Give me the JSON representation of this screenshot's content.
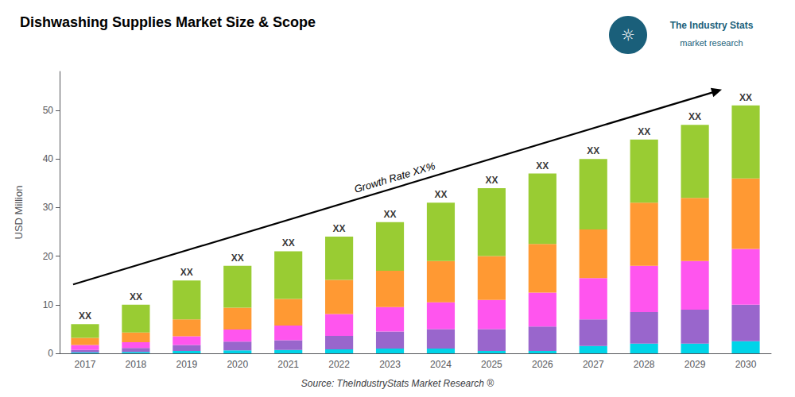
{
  "chart_data": {
    "type": "bar",
    "title": "Dishwashing Supplies Market Size & Scope",
    "ylabel": "USD Million",
    "categories": [
      2017,
      2018,
      2019,
      2020,
      2021,
      2022,
      2023,
      2024,
      2025,
      2026,
      2027,
      2028,
      2029,
      2030
    ],
    "stacked": true,
    "series": [
      {
        "color": "#00D4E8",
        "values": [
          0.2,
          0.3,
          0.5,
          0.6,
          0.7,
          0.8,
          1.0,
          1.0,
          0.5,
          0.5,
          1.5,
          2.0,
          2.0,
          2.5
        ]
      },
      {
        "color": "#9966CC",
        "values": [
          0.5,
          0.8,
          1.2,
          1.8,
          2.0,
          2.8,
          3.5,
          4.0,
          4.5,
          5.0,
          5.5,
          6.5,
          7.0,
          7.5
        ]
      },
      {
        "color": "#FF55EE",
        "values": [
          1.0,
          1.2,
          1.8,
          2.5,
          3.0,
          4.5,
          5.0,
          5.5,
          6.0,
          7.0,
          8.5,
          9.5,
          10.0,
          11.5
        ]
      },
      {
        "color": "#FF9933",
        "values": [
          1.5,
          2.0,
          3.5,
          4.5,
          5.5,
          7.0,
          7.5,
          8.5,
          9.0,
          10.0,
          10.0,
          13.0,
          13.0,
          14.5
        ]
      },
      {
        "color": "#99CC33",
        "values": [
          2.8,
          5.7,
          8.0,
          8.6,
          9.8,
          8.9,
          10.0,
          12.0,
          14.0,
          14.5,
          14.5,
          13.0,
          15.0,
          15.0
        ]
      }
    ],
    "totals": [
      6,
      10,
      15,
      18,
      21,
      24,
      27,
      31,
      34,
      37,
      40,
      44,
      47,
      51
    ],
    "total_labels": [
      "XX",
      "XX",
      "XX",
      "XX",
      "XX",
      "XX",
      "XX",
      "XX",
      "XX",
      "XX",
      "XX",
      "XX",
      "XX",
      "XX"
    ],
    "annotations": [
      "Growth Rate XX%"
    ],
    "source": "Source: TheIndustryStats Market Research ®",
    "logo": {
      "text": [
        "The Industry Stats",
        "market research"
      ],
      "icon": "☼",
      "color": "#1a5f7a"
    },
    "ylim": [
      0,
      58
    ],
    "yticks": [
      0,
      10,
      20,
      30,
      40,
      50
    ],
    "grid": false
  }
}
